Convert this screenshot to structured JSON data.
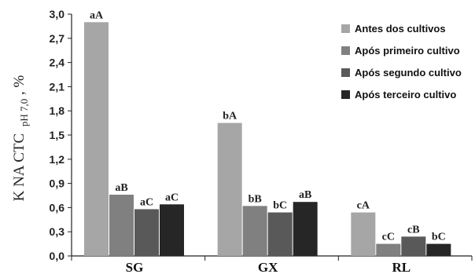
{
  "chart_data": {
    "type": "bar",
    "ylabel": {
      "main": "K NA CTC",
      "subscript": "pH 7,0",
      "suffix": ", %"
    },
    "xlabel": "",
    "ylim": [
      0,
      3.0
    ],
    "yticks": [
      "0,0",
      "0,3",
      "0,6",
      "0,9",
      "1,2",
      "1,5",
      "1,8",
      "2,1",
      "2,4",
      "2,7",
      "3,0"
    ],
    "categories": [
      "SG",
      "GX",
      "RL"
    ],
    "grid": false,
    "legend_position": "top-right",
    "series": [
      {
        "name": "Antes dos cultivos",
        "color": "#a6a6a6",
        "values": [
          2.9,
          1.65,
          0.54
        ],
        "labels": [
          "aA",
          "bA",
          "cA"
        ]
      },
      {
        "name": "Após primeiro cultivo",
        "color": "#808080",
        "values": [
          0.76,
          0.62,
          0.15
        ],
        "labels": [
          "aB",
          "bB",
          "cC"
        ]
      },
      {
        "name": "Após segundo cultivo",
        "color": "#595959",
        "values": [
          0.58,
          0.54,
          0.24
        ],
        "labels": [
          "aC",
          "bC",
          "cB"
        ]
      },
      {
        "name": "Após terceiro cultivo",
        "color": "#262626",
        "values": [
          0.64,
          0.67,
          0.15
        ],
        "labels": [
          "aC",
          "aB",
          "bC"
        ]
      }
    ]
  }
}
